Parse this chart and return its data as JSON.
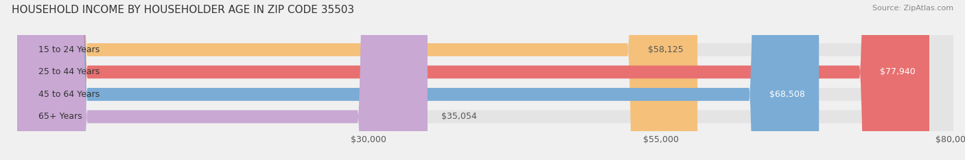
{
  "title": "HOUSEHOLD INCOME BY HOUSEHOLDER AGE IN ZIP CODE 35503",
  "source": "Source: ZipAtlas.com",
  "categories": [
    "15 to 24 Years",
    "25 to 44 Years",
    "45 to 64 Years",
    "65+ Years"
  ],
  "values": [
    58125,
    77940,
    68508,
    35054
  ],
  "bar_colors": [
    "#f5c07a",
    "#e87070",
    "#7aacd6",
    "#c9a8d4"
  ],
  "label_colors": [
    "#555555",
    "#ffffff",
    "#ffffff",
    "#555555"
  ],
  "xlim": [
    0,
    80000
  ],
  "xticks": [
    30000,
    55000,
    80000
  ],
  "xtick_labels": [
    "$30,000",
    "$55,000",
    "$80,000"
  ],
  "background_color": "#f0f0f0",
  "bar_bg_color": "#e4e4e4",
  "title_fontsize": 11,
  "source_fontsize": 8,
  "tick_fontsize": 9,
  "label_fontsize": 9,
  "cat_fontsize": 9
}
